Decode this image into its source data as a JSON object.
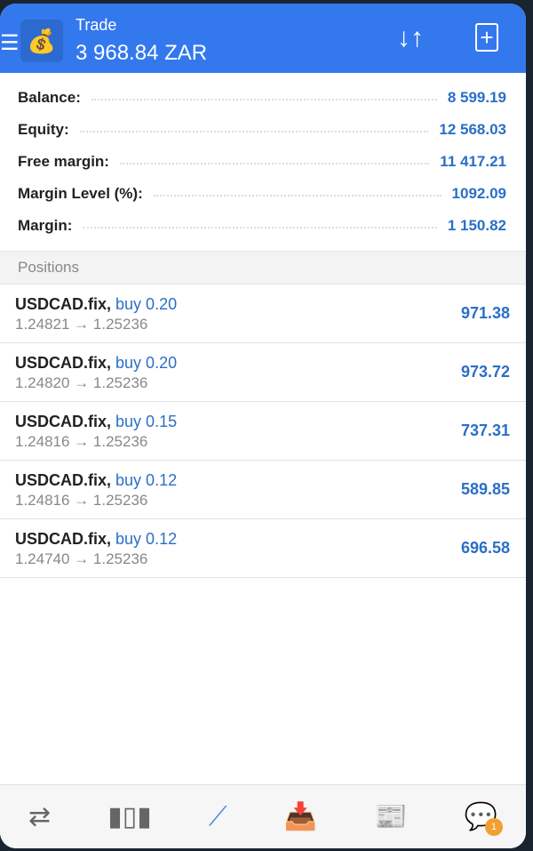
{
  "header": {
    "title": "Trade",
    "balance": "3 968.84 ZAR"
  },
  "account": [
    {
      "label": "Balance:",
      "value": "8 599.19"
    },
    {
      "label": "Equity:",
      "value": "12 568.03"
    },
    {
      "label": "Free margin:",
      "value": "11 417.21"
    },
    {
      "label": "Margin Level (%):",
      "value": "1092.09"
    },
    {
      "label": "Margin:",
      "value": "1 150.82"
    }
  ],
  "positions_label": "Positions",
  "positions": [
    {
      "symbol": "USDCAD.fix,",
      "side": "buy 0.20",
      "prices": "1.24821 → 1.25236",
      "profit": "971.38"
    },
    {
      "symbol": "USDCAD.fix,",
      "side": "buy 0.20",
      "prices": "1.24820 → 1.25236",
      "profit": "973.72"
    },
    {
      "symbol": "USDCAD.fix,",
      "side": "buy 0.15",
      "prices": "1.24816 → 1.25236",
      "profit": "737.31"
    },
    {
      "symbol": "USDCAD.fix,",
      "side": "buy 0.12",
      "prices": "1.24816 → 1.25236",
      "profit": "589.85"
    },
    {
      "symbol": "USDCAD.fix,",
      "side": "buy 0.12",
      "prices": "1.24740 → 1.25236",
      "profit": "696.58"
    }
  ],
  "nav": {
    "active": "trade",
    "chat_badge": "1"
  },
  "colors": {
    "header": "#3478ee",
    "accent": "#2a6fc7",
    "badge": "#f0a030"
  }
}
